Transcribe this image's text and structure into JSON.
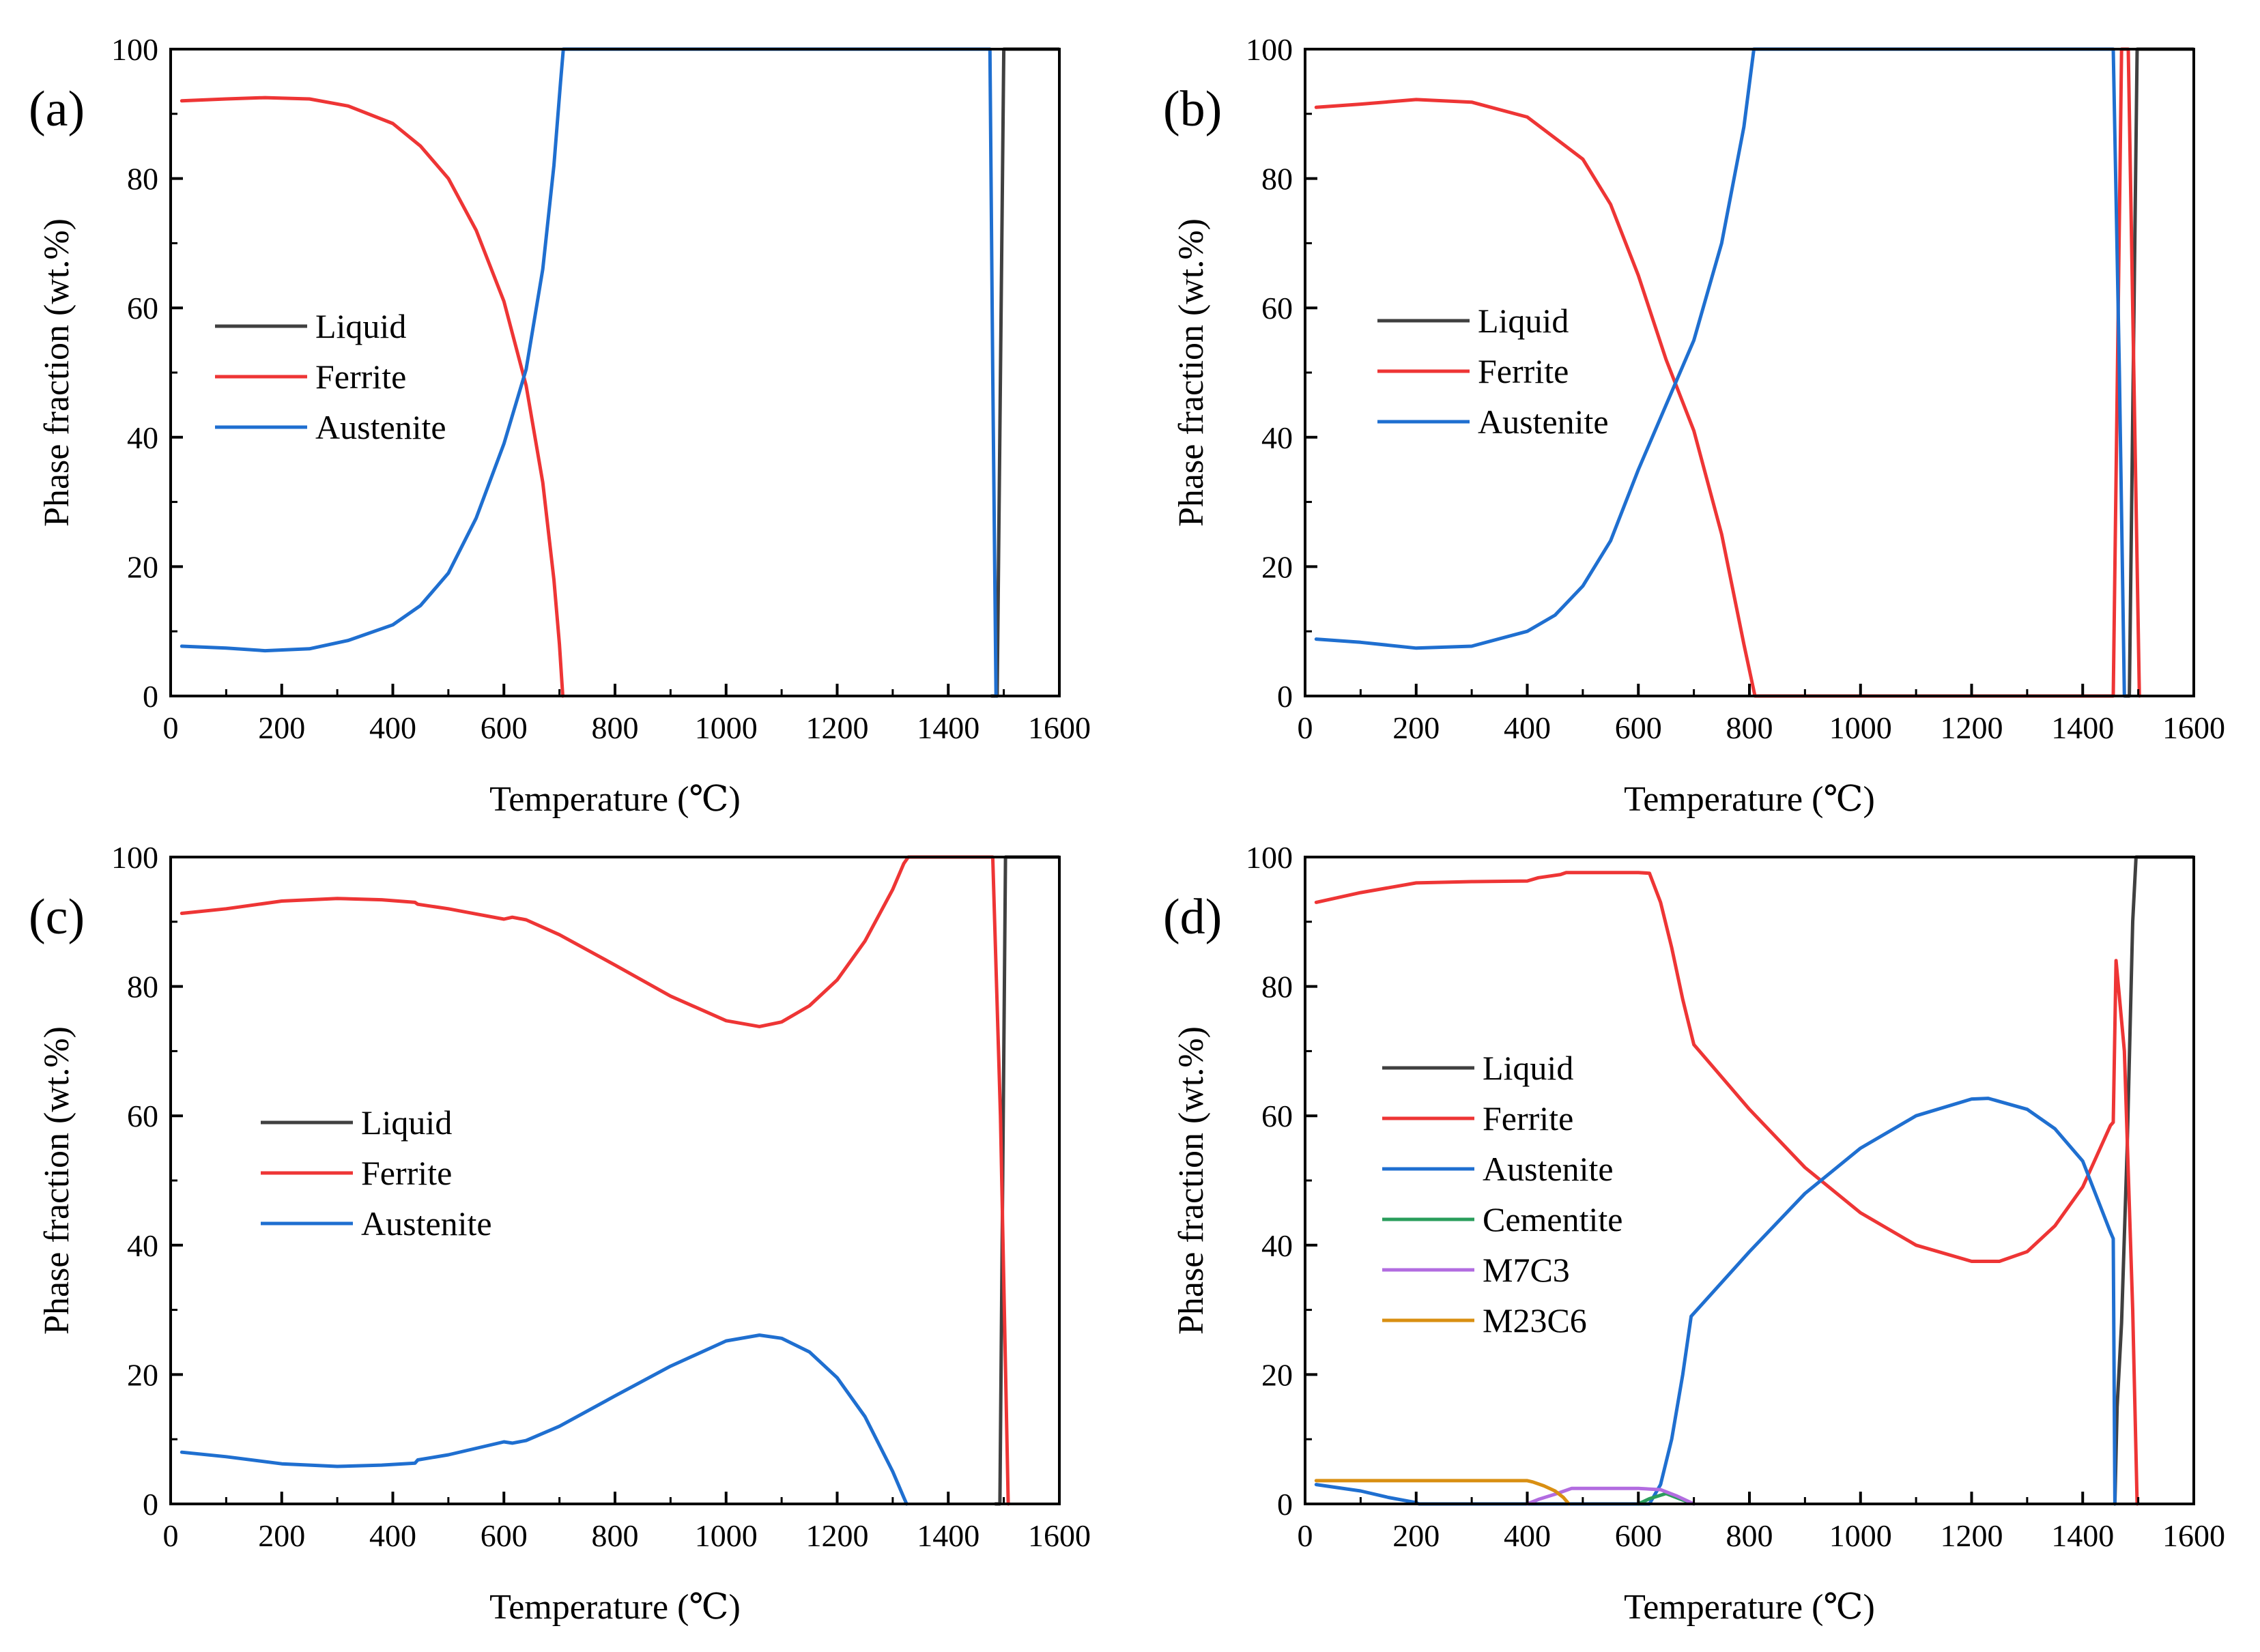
{
  "chart_data": [
    {
      "type": "line",
      "panel_label": "(a)",
      "xlabel": "Temperature (℃)",
      "ylabel": "Phase fraction (wt.%)",
      "xlim": [
        0,
        1600
      ],
      "ylim": [
        0,
        100
      ],
      "xticks": [
        0,
        200,
        400,
        600,
        800,
        1000,
        1200,
        1400,
        1600
      ],
      "yticks": [
        0,
        20,
        40,
        60,
        80,
        100
      ],
      "grid": false,
      "legend_position": "center-left",
      "series": [
        {
          "name": "Liquid",
          "color": "#404040",
          "points": [
            [
              1478,
              0
            ],
            [
              1488,
              0
            ],
            [
              1500,
              100
            ],
            [
              1600,
              100
            ]
          ]
        },
        {
          "name": "Ferrite",
          "color": "#ee3535",
          "points": [
            [
              20,
              92
            ],
            [
              100,
              92.3
            ],
            [
              170,
              92.5
            ],
            [
              250,
              92.3
            ],
            [
              320,
              91.2
            ],
            [
              400,
              88.5
            ],
            [
              450,
              85
            ],
            [
              500,
              80
            ],
            [
              550,
              72
            ],
            [
              600,
              61
            ],
            [
              640,
              48
            ],
            [
              670,
              33
            ],
            [
              690,
              18
            ],
            [
              700,
              8
            ],
            [
              706,
              0
            ]
          ]
        },
        {
          "name": "Austenite",
          "color": "#1f6fd0",
          "points": [
            [
              20,
              7.7
            ],
            [
              100,
              7.4
            ],
            [
              170,
              7
            ],
            [
              250,
              7.3
            ],
            [
              320,
              8.6
            ],
            [
              400,
              11
            ],
            [
              450,
              14
            ],
            [
              500,
              19
            ],
            [
              550,
              27.5
            ],
            [
              600,
              39
            ],
            [
              640,
              50.5
            ],
            [
              670,
              66
            ],
            [
              690,
              82
            ],
            [
              702,
              95
            ],
            [
              707,
              100
            ],
            [
              1475,
              100
            ],
            [
              1480,
              50
            ],
            [
              1486,
              0
            ]
          ]
        }
      ]
    },
    {
      "type": "line",
      "panel_label": "(b)",
      "xlabel": "Temperature (℃)",
      "ylabel": "Phase fraction (wt.%)",
      "xlim": [
        0,
        1600
      ],
      "ylim": [
        0,
        100
      ],
      "xticks": [
        0,
        200,
        400,
        600,
        800,
        1000,
        1200,
        1400,
        1600
      ],
      "yticks": [
        0,
        20,
        40,
        60,
        80,
        100
      ],
      "grid": false,
      "legend_position": "center-left",
      "series": [
        {
          "name": "Liquid",
          "color": "#404040",
          "points": [
            [
              1475,
              0
            ],
            [
              1484,
              0
            ],
            [
              1498,
              100
            ],
            [
              1600,
              100
            ]
          ]
        },
        {
          "name": "Ferrite",
          "color": "#ee3535",
          "points": [
            [
              20,
              91
            ],
            [
              100,
              91.5
            ],
            [
              200,
              92.2
            ],
            [
              300,
              91.8
            ],
            [
              400,
              89.5
            ],
            [
              500,
              83
            ],
            [
              550,
              76
            ],
            [
              600,
              65
            ],
            [
              650,
              52
            ],
            [
              700,
              41
            ],
            [
              750,
              25
            ],
            [
              790,
              8
            ],
            [
              810,
              0
            ],
            [
              1455,
              0
            ],
            [
              1470,
              100
            ],
            [
              1482,
              100
            ],
            [
              1502,
              0
            ]
          ]
        },
        {
          "name": "Austenite",
          "color": "#1f6fd0",
          "points": [
            [
              20,
              8.8
            ],
            [
              100,
              8.3
            ],
            [
              200,
              7.4
            ],
            [
              300,
              7.7
            ],
            [
              400,
              10
            ],
            [
              450,
              12.5
            ],
            [
              500,
              17
            ],
            [
              550,
              24
            ],
            [
              600,
              35
            ],
            [
              650,
              45
            ],
            [
              700,
              55
            ],
            [
              750,
              70
            ],
            [
              790,
              88
            ],
            [
              808,
              100
            ],
            [
              1455,
              100
            ],
            [
              1466,
              50
            ],
            [
              1475,
              0
            ]
          ]
        }
      ]
    },
    {
      "type": "line",
      "panel_label": "(c)",
      "xlabel": "Temperature (℃)",
      "ylabel": "Phase fraction (wt.%)",
      "xlim": [
        0,
        1600
      ],
      "ylim": [
        0,
        100
      ],
      "xticks": [
        0,
        200,
        400,
        600,
        800,
        1000,
        1200,
        1400,
        1600
      ],
      "yticks": [
        0,
        20,
        40,
        60,
        80,
        100
      ],
      "grid": false,
      "legend_position": "center-left",
      "series": [
        {
          "name": "Liquid",
          "color": "#404040",
          "points": [
            [
              1485,
              0
            ],
            [
              1493,
              0
            ],
            [
              1503,
              100
            ],
            [
              1600,
              100
            ]
          ]
        },
        {
          "name": "Ferrite",
          "color": "#ee3535",
          "points": [
            [
              20,
              91.3
            ],
            [
              100,
              92
            ],
            [
              200,
              93.2
            ],
            [
              300,
              93.6
            ],
            [
              380,
              93.4
            ],
            [
              440,
              93
            ],
            [
              445,
              92.7
            ],
            [
              500,
              92
            ],
            [
              550,
              91.2
            ],
            [
              600,
              90.4
            ],
            [
              615,
              90.7
            ],
            [
              640,
              90.3
            ],
            [
              700,
              88
            ],
            [
              800,
              83.3
            ],
            [
              900,
              78.5
            ],
            [
              1000,
              74.7
            ],
            [
              1060,
              73.8
            ],
            [
              1100,
              74.5
            ],
            [
              1150,
              77
            ],
            [
              1200,
              81
            ],
            [
              1250,
              87
            ],
            [
              1300,
              95
            ],
            [
              1320,
              99
            ],
            [
              1328,
              100
            ],
            [
              1480,
              100
            ],
            [
              1494,
              60
            ],
            [
              1508,
              0
            ]
          ]
        },
        {
          "name": "Austenite",
          "color": "#1f6fd0",
          "points": [
            [
              20,
              8
            ],
            [
              100,
              7.3
            ],
            [
              200,
              6.2
            ],
            [
              300,
              5.8
            ],
            [
              380,
              6
            ],
            [
              440,
              6.3
            ],
            [
              445,
              6.8
            ],
            [
              500,
              7.6
            ],
            [
              550,
              8.6
            ],
            [
              600,
              9.6
            ],
            [
              615,
              9.4
            ],
            [
              640,
              9.8
            ],
            [
              700,
              12
            ],
            [
              800,
              16.7
            ],
            [
              900,
              21.3
            ],
            [
              1000,
              25.2
            ],
            [
              1060,
              26.1
            ],
            [
              1100,
              25.6
            ],
            [
              1150,
              23.5
            ],
            [
              1200,
              19.5
            ],
            [
              1250,
              13.5
            ],
            [
              1300,
              5
            ],
            [
              1320,
              1
            ],
            [
              1325,
              0
            ]
          ]
        }
      ]
    },
    {
      "type": "line",
      "panel_label": "(d)",
      "xlabel": "Temperature (℃)",
      "ylabel": "Phase fraction (wt.%)",
      "xlim": [
        0,
        1600
      ],
      "ylim": [
        0,
        100
      ],
      "xticks": [
        0,
        200,
        400,
        600,
        800,
        1000,
        1200,
        1400,
        1600
      ],
      "yticks": [
        0,
        20,
        40,
        60,
        80,
        100
      ],
      "grid": false,
      "legend_position": "center-left",
      "series": [
        {
          "name": "Liquid",
          "color": "#404040",
          "points": [
            [
              1458,
              0
            ],
            [
              1462,
              15
            ],
            [
              1470,
              28
            ],
            [
              1480,
              55
            ],
            [
              1490,
              90
            ],
            [
              1496,
              100
            ],
            [
              1600,
              100
            ]
          ]
        },
        {
          "name": "Ferrite",
          "color": "#ee3535",
          "points": [
            [
              20,
              93
            ],
            [
              100,
              94.5
            ],
            [
              200,
              96
            ],
            [
              300,
              96.2
            ],
            [
              400,
              96.3
            ],
            [
              420,
              96.8
            ],
            [
              460,
              97.3
            ],
            [
              470,
              97.6
            ],
            [
              600,
              97.6
            ],
            [
              620,
              97.5
            ],
            [
              640,
              93
            ],
            [
              660,
              86
            ],
            [
              680,
              78
            ],
            [
              700,
              71
            ],
            [
              800,
              61
            ],
            [
              900,
              52
            ],
            [
              1000,
              45
            ],
            [
              1100,
              40
            ],
            [
              1200,
              37.5
            ],
            [
              1250,
              37.5
            ],
            [
              1300,
              39
            ],
            [
              1350,
              43
            ],
            [
              1400,
              49
            ],
            [
              1450,
              58.5
            ],
            [
              1455,
              59
            ],
            [
              1460,
              84
            ],
            [
              1475,
              70
            ],
            [
              1490,
              30
            ],
            [
              1498,
              0
            ]
          ]
        },
        {
          "name": "Austenite",
          "color": "#1f6fd0",
          "points": [
            [
              20,
              3
            ],
            [
              100,
              2
            ],
            [
              150,
              1
            ],
            [
              200,
              0.2
            ],
            [
              205,
              0
            ],
            [
              620,
              0
            ],
            [
              640,
              3
            ],
            [
              660,
              10
            ],
            [
              680,
              20
            ],
            [
              695,
              29
            ],
            [
              800,
              39
            ],
            [
              900,
              48
            ],
            [
              1000,
              55
            ],
            [
              1100,
              60
            ],
            [
              1200,
              62.6
            ],
            [
              1230,
              62.7
            ],
            [
              1300,
              61
            ],
            [
              1350,
              58
            ],
            [
              1400,
              53
            ],
            [
              1450,
              42
            ],
            [
              1455,
              41
            ],
            [
              1458,
              0
            ]
          ]
        },
        {
          "name": "Cementite",
          "color": "#2a9d5c",
          "points": [
            [
              600,
              0
            ],
            [
              620,
              0.8
            ],
            [
              650,
              1.6
            ],
            [
              680,
              0.6
            ],
            [
              700,
              0
            ]
          ]
        },
        {
          "name": "M7C3",
          "color": "#b26ce0",
          "points": [
            [
              400,
              0
            ],
            [
              420,
              0.7
            ],
            [
              450,
              1.5
            ],
            [
              480,
              2.4
            ],
            [
              600,
              2.4
            ],
            [
              640,
              2.2
            ],
            [
              670,
              1.2
            ],
            [
              700,
              0
            ]
          ]
        },
        {
          "name": "M23C6",
          "color": "#d98f12",
          "points": [
            [
              20,
              3.6
            ],
            [
              200,
              3.6
            ],
            [
              400,
              3.6
            ],
            [
              410,
              3.4
            ],
            [
              430,
              2.8
            ],
            [
              450,
              2
            ],
            [
              465,
              1
            ],
            [
              475,
              0
            ]
          ]
        }
      ]
    }
  ]
}
